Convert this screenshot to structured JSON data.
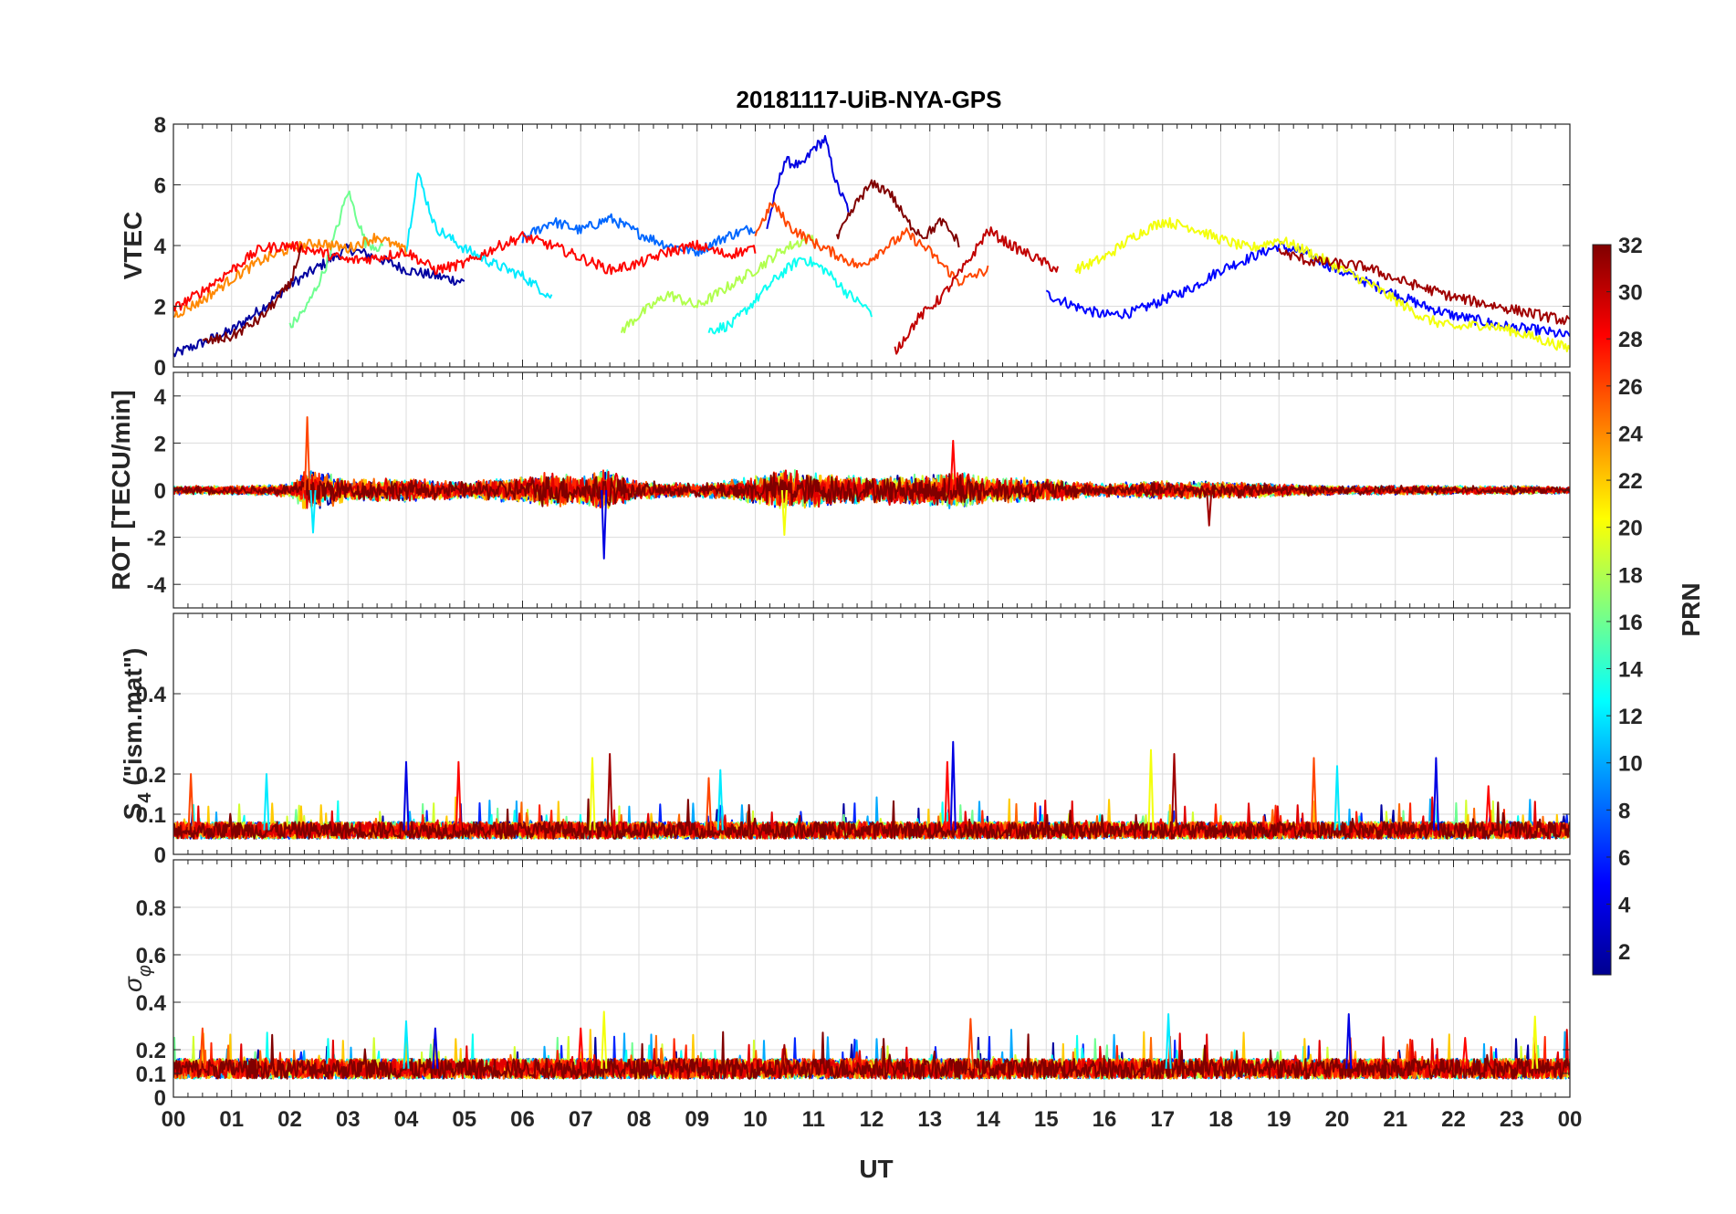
{
  "figure": {
    "title": "20181117-UiB-NYA-GPS",
    "xlabel": "UT"
  },
  "chart_data": [
    {
      "type": "line",
      "panel": "VTEC",
      "ylabel": "VTEC",
      "ylim": [
        0,
        8
      ],
      "yticks": [
        "0",
        "2",
        "4",
        "6",
        "8"
      ],
      "xlim": [
        0,
        24
      ],
      "xticks": [
        "00",
        "01",
        "02",
        "03",
        "04",
        "05",
        "06",
        "07",
        "08",
        "09",
        "10",
        "11",
        "12",
        "13",
        "14",
        "15",
        "16",
        "17",
        "18",
        "19",
        "20",
        "21",
        "22",
        "23",
        "00"
      ],
      "grid": true,
      "series": [
        {
          "prn": 2,
          "x": [
            0,
            0.5,
            1,
            1.5,
            2,
            2.5,
            3,
            3.5,
            4,
            4.5,
            5
          ],
          "values": [
            0.4,
            0.8,
            1.2,
            1.9,
            2.7,
            3.3,
            3.9,
            3.6,
            3.2,
            3.0,
            2.8
          ]
        },
        {
          "prn": 4,
          "x": [
            10.2,
            10.5,
            10.8,
            11,
            11.2,
            11.4,
            11.6
          ],
          "values": [
            4.6,
            6.8,
            6.6,
            7.2,
            7.5,
            6.0,
            5.2
          ]
        },
        {
          "prn": 5,
          "x": [
            15,
            15.5,
            16,
            16.5,
            17,
            17.5,
            18,
            18.5,
            19,
            19.5,
            20,
            20.5,
            21,
            21.5,
            22,
            22.5,
            23,
            23.5,
            24
          ],
          "values": [
            2.4,
            2.0,
            1.7,
            1.8,
            2.2,
            2.6,
            3.2,
            3.6,
            4.0,
            3.7,
            3.2,
            2.8,
            2.4,
            2.0,
            1.7,
            1.5,
            1.3,
            1.2,
            1.0
          ]
        },
        {
          "prn": 8,
          "x": [
            6,
            6.5,
            7,
            7.5,
            8,
            8.5,
            9,
            9.5,
            10
          ],
          "values": [
            4.2,
            4.8,
            4.5,
            4.9,
            4.4,
            4.0,
            3.8,
            4.3,
            4.6
          ]
        },
        {
          "prn": 12,
          "x": [
            4,
            4.2,
            4.5,
            5,
            5.5,
            6,
            6.5
          ],
          "values": [
            3.8,
            6.4,
            4.6,
            3.9,
            3.4,
            3.0,
            2.3
          ]
        },
        {
          "prn": 13,
          "x": [
            9.2,
            9.6,
            10,
            10.4,
            10.8,
            11.2,
            11.6,
            12
          ],
          "values": [
            1.2,
            1.4,
            2.2,
            3.0,
            3.6,
            3.2,
            2.4,
            1.8
          ]
        },
        {
          "prn": 16,
          "x": [
            2,
            2.3,
            2.6,
            3,
            3.3,
            3.6
          ],
          "values": [
            1.3,
            2.0,
            3.2,
            5.8,
            4.1,
            3.9
          ]
        },
        {
          "prn": 18,
          "x": [
            7.7,
            8,
            8.5,
            9,
            9.5,
            10,
            10.5,
            11
          ],
          "values": [
            1.2,
            1.7,
            2.4,
            2.0,
            2.6,
            3.2,
            3.9,
            4.3
          ]
        },
        {
          "prn": 20,
          "x": [
            15.5,
            16,
            16.5,
            17,
            17.5,
            18,
            18.5,
            19,
            19.5,
            20,
            20.5,
            21,
            21.5,
            22,
            22.5,
            23,
            23.5,
            24
          ],
          "values": [
            3.2,
            3.6,
            4.3,
            4.8,
            4.6,
            4.2,
            3.9,
            4.2,
            3.8,
            3.3,
            2.8,
            2.2,
            1.6,
            1.3,
            1.4,
            1.2,
            0.9,
            0.6
          ]
        },
        {
          "prn": 24,
          "x": [
            0,
            0.5,
            1,
            1.5,
            2,
            2.5,
            3,
            3.5,
            4
          ],
          "values": [
            1.7,
            2.2,
            2.9,
            3.5,
            3.9,
            4.1,
            3.9,
            4.3,
            3.8
          ]
        },
        {
          "prn": 26,
          "x": [
            10,
            10.3,
            10.6,
            11,
            11.4,
            11.8,
            12.2,
            12.6,
            13,
            13.5,
            14
          ],
          "values": [
            4.4,
            5.4,
            4.6,
            4.1,
            3.7,
            3.3,
            3.9,
            4.4,
            3.8,
            2.8,
            3.2
          ]
        },
        {
          "prn": 28,
          "x": [
            0,
            0.5,
            1,
            1.5,
            2,
            2.5,
            3,
            3.5,
            4,
            4.5,
            5,
            5.5,
            6,
            6.5,
            7,
            7.5,
            8,
            8.5,
            9,
            9.5,
            10
          ],
          "values": [
            1.9,
            2.5,
            3.2,
            3.9,
            4.0,
            3.8,
            3.5,
            3.6,
            3.8,
            3.2,
            3.4,
            3.9,
            4.3,
            4.0,
            3.6,
            3.2,
            3.4,
            3.8,
            4.0,
            3.7,
            3.9
          ]
        },
        {
          "prn": 30,
          "x": [
            12.4,
            12.8,
            13.2,
            13.6,
            14,
            14.4,
            14.8,
            15.2
          ],
          "values": [
            0.5,
            1.6,
            2.3,
            3.3,
            4.5,
            4.0,
            3.6,
            3.2
          ]
        },
        {
          "prn": 32,
          "x": [
            0.5,
            1,
            1.5,
            2,
            2.2
          ],
          "values": [
            0.8,
            1.0,
            1.6,
            2.7,
            4.0
          ]
        },
        {
          "prn": 32,
          "x": [
            11.4,
            11.8,
            12,
            12.3,
            12.6,
            12.9,
            13.2,
            13.5
          ],
          "values": [
            4.2,
            5.6,
            6.0,
            5.8,
            4.8,
            4.3,
            4.8,
            4.1
          ]
        },
        {
          "prn": 31,
          "x": [
            19,
            19.5,
            20,
            20.5,
            21,
            21.5,
            22,
            22.5,
            23,
            23.5,
            24
          ],
          "values": [
            3.8,
            3.5,
            3.4,
            3.3,
            2.9,
            2.6,
            2.3,
            2.1,
            1.9,
            1.7,
            1.5
          ]
        }
      ]
    },
    {
      "type": "line",
      "panel": "ROT",
      "ylabel": "ROT [TECU/min]",
      "ylim": [
        -5,
        5
      ],
      "yticks": [
        "-4",
        "-2",
        "0",
        "2",
        "4"
      ],
      "xlim": [
        0,
        24
      ],
      "grid": true,
      "noise_envelope": {
        "x": [
          0,
          1,
          2,
          2.3,
          3,
          4,
          5,
          6,
          6.5,
          7,
          7.4,
          8,
          9,
          10,
          10.5,
          11,
          12,
          13,
          13.5,
          14,
          15,
          16,
          17,
          18,
          19,
          20,
          21,
          22,
          23,
          24
        ],
        "values": [
          0.2,
          0.2,
          0.3,
          1.0,
          0.5,
          0.5,
          0.4,
          0.6,
          0.8,
          0.6,
          1.0,
          0.4,
          0.3,
          0.6,
          0.9,
          0.8,
          0.6,
          0.7,
          0.9,
          0.6,
          0.5,
          0.3,
          0.4,
          0.4,
          0.3,
          0.2,
          0.2,
          0.2,
          0.2,
          0.15
        ]
      },
      "spikes": [
        {
          "x": 2.3,
          "value": 3.1
        },
        {
          "x": 2.4,
          "value": -1.8
        },
        {
          "x": 7.4,
          "value": -2.9
        },
        {
          "x": 13.4,
          "value": 2.1
        },
        {
          "x": 10.5,
          "value": -1.9
        },
        {
          "x": 17.8,
          "value": -1.5
        }
      ]
    },
    {
      "type": "line",
      "panel": "S4",
      "ylabel": "S4 (\"ism.mat\")",
      "ylim": [
        0,
        0.6
      ],
      "yticks": [
        "0",
        "0.1",
        "0.2",
        "0.4"
      ],
      "xlim": [
        0,
        24
      ],
      "grid": true,
      "baseline": 0.06,
      "spikes": [
        {
          "x": 0.3,
          "value": 0.2
        },
        {
          "x": 1.6,
          "value": 0.2
        },
        {
          "x": 4.0,
          "value": 0.23
        },
        {
          "x": 4.9,
          "value": 0.23
        },
        {
          "x": 7.2,
          "value": 0.24
        },
        {
          "x": 7.5,
          "value": 0.25
        },
        {
          "x": 9.2,
          "value": 0.19
        },
        {
          "x": 9.4,
          "value": 0.21
        },
        {
          "x": 13.4,
          "value": 0.28
        },
        {
          "x": 13.3,
          "value": 0.23
        },
        {
          "x": 16.8,
          "value": 0.26
        },
        {
          "x": 17.2,
          "value": 0.25
        },
        {
          "x": 19.6,
          "value": 0.24
        },
        {
          "x": 20.0,
          "value": 0.22
        },
        {
          "x": 21.7,
          "value": 0.24
        },
        {
          "x": 22.6,
          "value": 0.17
        }
      ]
    },
    {
      "type": "line",
      "panel": "sigma_phi",
      "ylabel": "σφ",
      "ylim": [
        0,
        1
      ],
      "yticks": [
        "0",
        "0.1",
        "0.2",
        "0.4",
        "0.6",
        "0.8"
      ],
      "xlim": [
        0,
        24
      ],
      "grid": true,
      "baseline": 0.12,
      "spikes": [
        {
          "x": 0.5,
          "value": 0.29
        },
        {
          "x": 4.0,
          "value": 0.32
        },
        {
          "x": 4.5,
          "value": 0.29
        },
        {
          "x": 7.0,
          "value": 0.29
        },
        {
          "x": 7.4,
          "value": 0.36
        },
        {
          "x": 10.5,
          "value": 0.22
        },
        {
          "x": 13.7,
          "value": 0.33
        },
        {
          "x": 17.1,
          "value": 0.35
        },
        {
          "x": 20.2,
          "value": 0.35
        },
        {
          "x": 22.2,
          "value": 0.25
        },
        {
          "x": 23.4,
          "value": 0.34
        }
      ]
    }
  ],
  "colorbar": {
    "label": "PRN",
    "range": [
      1,
      32
    ],
    "ticks": [
      "2",
      "4",
      "6",
      "8",
      "10",
      "12",
      "14",
      "16",
      "18",
      "20",
      "22",
      "24",
      "26",
      "28",
      "30",
      "32"
    ],
    "colormap": "jet"
  },
  "labels": {
    "s4_main": "S",
    "s4_sub": "4",
    "s4_rest": " (\"ism.mat\")",
    "sigma_main": "σ",
    "sigma_sub": "φ"
  }
}
